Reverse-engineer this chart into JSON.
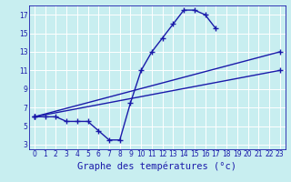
{
  "xlabel": "Graphe des températures (°c)",
  "bg_color": "#c8eef0",
  "grid_color": "#ffffff",
  "line_color": "#1a1aaa",
  "xlim": [
    -0.5,
    23.5
  ],
  "ylim": [
    2.5,
    18.0
  ],
  "xticks": [
    0,
    1,
    2,
    3,
    4,
    5,
    6,
    7,
    8,
    9,
    10,
    11,
    12,
    13,
    14,
    15,
    16,
    17,
    18,
    19,
    20,
    21,
    22,
    23
  ],
  "yticks": [
    3,
    5,
    7,
    9,
    11,
    13,
    15,
    17
  ],
  "xlabel_fontsize": 7.5,
  "curve1_x": [
    0,
    1,
    2,
    3,
    4,
    5,
    6,
    7,
    8,
    9,
    10,
    11,
    12,
    13,
    14,
    15,
    16,
    17
  ],
  "curve1_y": [
    6.0,
    6.0,
    6.0,
    5.5,
    5.5,
    5.5,
    4.5,
    3.5,
    3.5,
    7.5,
    11.0,
    13.0,
    14.5,
    16.0,
    17.5,
    17.5,
    17.0,
    15.5
  ],
  "curve2_x": [
    0,
    23
  ],
  "curve2_y": [
    6.0,
    13.0
  ],
  "curve3_x": [
    0,
    23
  ],
  "curve3_y": [
    6.0,
    11.0
  ]
}
